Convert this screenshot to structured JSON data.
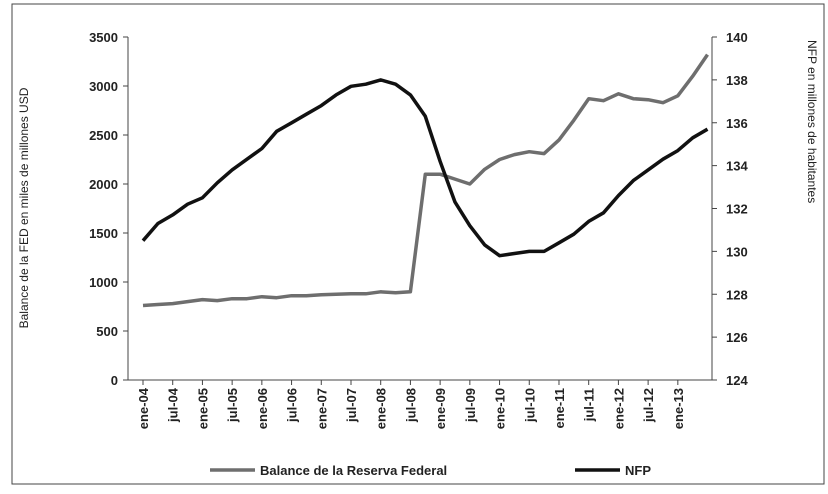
{
  "chart_data": {
    "type": "line",
    "categories": [
      "ene-04",
      null,
      "jul-04",
      null,
      "ene-05",
      null,
      "jul-05",
      null,
      "ene-06",
      null,
      "jul-06",
      null,
      "ene-07",
      null,
      "jul-07",
      null,
      "ene-08",
      null,
      "jul-08",
      null,
      "ene-09",
      null,
      "jul-09",
      null,
      "ene-10",
      null,
      "jul-10",
      null,
      "ene-11",
      null,
      "jul-11",
      null,
      "ene-12",
      null,
      "jul-12",
      null,
      "ene-13",
      null,
      null
    ],
    "y_label": "Balance de la FED en miles de millones USD",
    "y2_label": "NFP en millones de habitantes",
    "ylim": [
      0,
      3500
    ],
    "yticks": [
      0,
      500,
      1000,
      1500,
      2000,
      2500,
      3000,
      3500
    ],
    "y2lim": [
      124,
      140
    ],
    "y2ticks": [
      124,
      126,
      128,
      130,
      132,
      134,
      136,
      138,
      140
    ],
    "series": [
      {
        "name": "Balance de la Reserva Federal",
        "color": "#6e6e6e",
        "values": [
          760,
          770,
          780,
          800,
          820,
          810,
          830,
          830,
          850,
          840,
          860,
          860,
          870,
          875,
          880,
          880,
          900,
          890,
          900,
          2100,
          2100,
          2050,
          2000,
          2150,
          2250,
          2300,
          2330,
          2310,
          2450,
          2650,
          2870,
          2850,
          2920,
          2870,
          2860,
          2830,
          2900,
          3100,
          3320
        ]
      },
      {
        "name": "NFP",
        "color": "#111111",
        "axis": "y2",
        "values": [
          130.5,
          131.3,
          131.7,
          132.2,
          132.5,
          133.2,
          133.8,
          134.3,
          134.8,
          135.6,
          136.0,
          136.4,
          136.8,
          137.3,
          137.7,
          137.8,
          138.0,
          137.8,
          137.3,
          136.3,
          134.2,
          132.3,
          131.2,
          130.3,
          129.8,
          129.9,
          130.0,
          130.0,
          130.4,
          130.8,
          131.4,
          131.8,
          132.6,
          133.3,
          133.8,
          134.3,
          134.7,
          135.3,
          135.7
        ]
      }
    ]
  }
}
